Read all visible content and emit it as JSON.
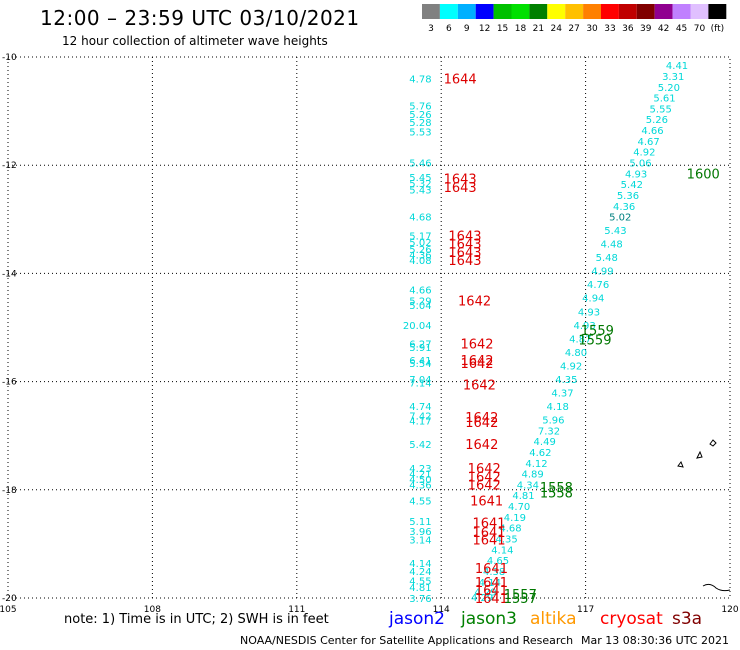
{
  "header": {
    "title": "12:00 – 23:59 UTC 03/10/2021",
    "subtitle": "12 hour collection of altimeter wave heights"
  },
  "colorbar": {
    "colors": [
      "#808080",
      "#00ffff",
      "#00b0ff",
      "#0000ff",
      "#00c000",
      "#00e000",
      "#008000",
      "#ffff00",
      "#ffc000",
      "#ff8000",
      "#ff0000",
      "#c00000",
      "#800000",
      "#900090",
      "#c080ff",
      "#e0c0ff",
      "#000000"
    ],
    "labels": [
      "3",
      "6",
      "9",
      "12",
      "15",
      "18",
      "21",
      "24",
      "27",
      "30",
      "33",
      "36",
      "39",
      "42",
      "45",
      "70",
      "(ft)"
    ]
  },
  "axes": {
    "x_ticks": [
      "105",
      "108",
      "111",
      "114",
      "117",
      "120"
    ],
    "y_ticks": [
      "-10",
      "-12",
      "-14",
      "-16",
      "-18",
      "-20"
    ]
  },
  "labels_left": [
    {
      "t": "4.78",
      "lat": -10.4
    },
    {
      "t": "5.76",
      "lat": -10.9
    },
    {
      "t": "5.26",
      "lat": -11.05
    },
    {
      "t": "5.28",
      "lat": -11.2
    },
    {
      "t": "5.53",
      "lat": -11.38
    },
    {
      "t": "5.46",
      "lat": -11.95
    },
    {
      "t": "5.45",
      "lat": -12.22
    },
    {
      "t": "5.32",
      "lat": -12.33
    },
    {
      "t": "5.43",
      "lat": -12.45
    },
    {
      "t": "4.68",
      "lat": -12.95
    },
    {
      "t": "5.17",
      "lat": -13.3
    },
    {
      "t": "5.02",
      "lat": -13.42
    },
    {
      "t": "5.26",
      "lat": -13.55
    },
    {
      "t": "4.36",
      "lat": -13.65
    },
    {
      "t": "4.08",
      "lat": -13.75
    },
    {
      "t": "4.66",
      "lat": -14.3
    },
    {
      "t": "5.29",
      "lat": -14.5
    },
    {
      "t": "5.04",
      "lat": -14.58
    },
    {
      "t": "20.04",
      "lat": -14.95
    },
    {
      "t": "6.27",
      "lat": -15.3
    },
    {
      "t": "5.91",
      "lat": -15.36
    },
    {
      "t": "6.41",
      "lat": -15.6
    },
    {
      "t": "5.54",
      "lat": -15.66
    },
    {
      "t": "7.04",
      "lat": -15.95
    },
    {
      "t": "7.14",
      "lat": -16.02
    },
    {
      "t": "4.74",
      "lat": -16.45
    },
    {
      "t": "7.42",
      "lat": -16.63
    },
    {
      "t": "4.17",
      "lat": -16.72
    },
    {
      "t": "5.42",
      "lat": -17.15
    },
    {
      "t": "4.23",
      "lat": -17.6
    },
    {
      "t": "4.21",
      "lat": -17.7
    },
    {
      "t": "4.50",
      "lat": -17.8
    },
    {
      "t": "4.36",
      "lat": -17.9
    },
    {
      "t": "4.55",
      "lat": -18.2
    },
    {
      "t": "5.11",
      "lat": -18.58
    },
    {
      "t": "3.96",
      "lat": -18.76
    },
    {
      "t": "3.14",
      "lat": -18.92
    },
    {
      "t": "4.14",
      "lat": -19.35
    },
    {
      "t": "4.24",
      "lat": -19.5
    },
    {
      "t": "4.55",
      "lat": -19.68
    },
    {
      "t": "4.81",
      "lat": -19.8
    },
    {
      "t": "3.76",
      "lat": -20.0
    }
  ],
  "labels_right": [
    {
      "t": "4.41",
      "lon": 118.9,
      "lat": -10.15
    },
    {
      "t": "3.31",
      "lon": 118.82,
      "lat": -10.35
    },
    {
      "t": "5.20",
      "lon": 118.73,
      "lat": -10.55
    },
    {
      "t": "5.61",
      "lon": 118.64,
      "lat": -10.75
    },
    {
      "t": "5.55",
      "lon": 118.56,
      "lat": -10.95
    },
    {
      "t": "5.26",
      "lon": 118.48,
      "lat": -11.15
    },
    {
      "t": "4.66",
      "lon": 118.39,
      "lat": -11.35
    },
    {
      "t": "4.67",
      "lon": 118.31,
      "lat": -11.55
    },
    {
      "t": "4.92",
      "lon": 118.22,
      "lat": -11.75
    },
    {
      "t": "5.06",
      "lon": 118.14,
      "lat": -11.95
    },
    {
      "t": "4.93",
      "lon": 118.05,
      "lat": -12.15
    },
    {
      "t": "5.42",
      "lon": 117.96,
      "lat": -12.35
    },
    {
      "t": "5.36",
      "lon": 117.88,
      "lat": -12.55
    },
    {
      "t": "4.36",
      "lon": 117.8,
      "lat": -12.75
    },
    {
      "t": "5.02",
      "lon": 117.72,
      "lat": -12.95
    },
    {
      "t": "5.43",
      "lon": 117.62,
      "lat": -13.2
    },
    {
      "t": "4.48",
      "lon": 117.54,
      "lat": -13.45
    },
    {
      "t": "5.48",
      "lon": 117.44,
      "lat": -13.7
    },
    {
      "t": "4.99",
      "lon": 117.35,
      "lat": -13.95
    },
    {
      "t": "4.76",
      "lon": 117.26,
      "lat": -14.2
    },
    {
      "t": "4.94",
      "lon": 117.16,
      "lat": -14.45
    },
    {
      "t": "4.93",
      "lon": 117.07,
      "lat": -14.7
    },
    {
      "t": "4.93",
      "lon": 116.98,
      "lat": -14.95
    },
    {
      "t": "4.87",
      "lon": 116.89,
      "lat": -15.2
    },
    {
      "t": "4.80",
      "lon": 116.8,
      "lat": -15.45
    },
    {
      "t": "4.92",
      "lon": 116.7,
      "lat": -15.7
    },
    {
      "t": "4.35",
      "lon": 116.6,
      "lat": -15.95
    },
    {
      "t": "4.37",
      "lon": 116.52,
      "lat": -16.2
    },
    {
      "t": "4.18",
      "lon": 116.42,
      "lat": -16.45
    },
    {
      "t": "5.96",
      "lon": 116.33,
      "lat": -16.7
    },
    {
      "t": "7.32",
      "lon": 116.24,
      "lat": -16.9
    },
    {
      "t": "4.49",
      "lon": 116.15,
      "lat": -17.1
    },
    {
      "t": "4.62",
      "lon": 116.06,
      "lat": -17.3
    },
    {
      "t": "4.12",
      "lon": 115.98,
      "lat": -17.5
    },
    {
      "t": "4.89",
      "lon": 115.9,
      "lat": -17.7
    },
    {
      "t": "4.34",
      "lon": 115.8,
      "lat": -17.9
    },
    {
      "t": "4.81",
      "lon": 115.71,
      "lat": -18.1
    },
    {
      "t": "4.70",
      "lon": 115.62,
      "lat": -18.3
    },
    {
      "t": "4.19",
      "lon": 115.53,
      "lat": -18.5
    },
    {
      "t": "4.68",
      "lon": 115.44,
      "lat": -18.7
    },
    {
      "t": "4.35",
      "lon": 115.36,
      "lat": -18.9
    },
    {
      "t": "4.14",
      "lon": 115.27,
      "lat": -19.1
    },
    {
      "t": "4.65",
      "lon": 115.18,
      "lat": -19.3
    },
    {
      "t": "4.38",
      "lon": 115.1,
      "lat": -19.5
    },
    {
      "t": "4.14",
      "lon": 115.01,
      "lat": -19.7
    },
    {
      "t": "4.29",
      "lon": 114.92,
      "lat": -19.88
    },
    {
      "t": "4.29",
      "lon": 114.85,
      "lat": -19.98
    }
  ],
  "times": [
    {
      "t": "1644",
      "lon": 114.05,
      "lat": -10.4,
      "sat": "cryosat"
    },
    {
      "t": "1643",
      "lon": 114.05,
      "lat": -12.25,
      "sat": "cryosat"
    },
    {
      "t": "1643",
      "lon": 114.05,
      "lat": -12.4,
      "sat": "cryosat"
    },
    {
      "t": "1643",
      "lon": 114.15,
      "lat": -13.3,
      "sat": "cryosat"
    },
    {
      "t": "1643",
      "lon": 114.15,
      "lat": -13.45,
      "sat": "cryosat"
    },
    {
      "t": "1643",
      "lon": 114.15,
      "lat": -13.6,
      "sat": "cryosat"
    },
    {
      "t": "1643",
      "lon": 114.15,
      "lat": -13.75,
      "sat": "cryosat"
    },
    {
      "t": "1642",
      "lon": 114.35,
      "lat": -14.5,
      "sat": "cryosat"
    },
    {
      "t": "1642",
      "lon": 114.4,
      "lat": -15.3,
      "sat": "cryosat"
    },
    {
      "t": "1642",
      "lon": 114.4,
      "lat": -15.6,
      "sat": "cryosat"
    },
    {
      "t": "1642",
      "lon": 114.4,
      "lat": -15.66,
      "sat": "cryosat"
    },
    {
      "t": "1642",
      "lon": 114.45,
      "lat": -16.05,
      "sat": "cryosat"
    },
    {
      "t": "1642",
      "lon": 114.5,
      "lat": -16.65,
      "sat": "cryosat"
    },
    {
      "t": "1642",
      "lon": 114.5,
      "lat": -16.75,
      "sat": "cryosat"
    },
    {
      "t": "1642",
      "lon": 114.5,
      "lat": -17.15,
      "sat": "cryosat"
    },
    {
      "t": "1642",
      "lon": 114.55,
      "lat": -17.6,
      "sat": "cryosat"
    },
    {
      "t": "1642",
      "lon": 114.55,
      "lat": -17.75,
      "sat": "cryosat"
    },
    {
      "t": "1642",
      "lon": 114.55,
      "lat": -17.9,
      "sat": "cryosat"
    },
    {
      "t": "1641",
      "lon": 114.6,
      "lat": -18.2,
      "sat": "cryosat"
    },
    {
      "t": "1641",
      "lon": 114.65,
      "lat": -18.6,
      "sat": "cryosat"
    },
    {
      "t": "1641",
      "lon": 114.65,
      "lat": -18.78,
      "sat": "cryosat"
    },
    {
      "t": "1641",
      "lon": 114.65,
      "lat": -18.92,
      "sat": "cryosat"
    },
    {
      "t": "1641",
      "lon": 114.7,
      "lat": -19.45,
      "sat": "cryosat"
    },
    {
      "t": "1641",
      "lon": 114.7,
      "lat": -19.7,
      "sat": "cryosat"
    },
    {
      "t": "1641",
      "lon": 114.7,
      "lat": -19.85,
      "sat": "cryosat"
    },
    {
      "t": "1641",
      "lon": 114.7,
      "lat": -20.0,
      "sat": "cryosat"
    },
    {
      "t": "1600",
      "lon": 119.1,
      "lat": -12.15,
      "sat": "jason3"
    },
    {
      "t": "1559",
      "lon": 116.9,
      "lat": -15.05,
      "sat": "jason3"
    },
    {
      "t": "1559",
      "lon": 116.85,
      "lat": -15.22,
      "sat": "jason3"
    },
    {
      "t": "1558",
      "lon": 116.05,
      "lat": -17.95,
      "sat": "jason3"
    },
    {
      "t": "1558",
      "lon": 116.05,
      "lat": -18.05,
      "sat": "jason3"
    },
    {
      "t": "1557",
      "lon": 115.3,
      "lat": -19.93,
      "sat": "jason3"
    },
    {
      "t": "1557",
      "lon": 115.3,
      "lat": -20.0,
      "sat": "jason3"
    }
  ],
  "footer": {
    "note": "note:  1) Time is in UTC;  2) SWH is in feet",
    "missions": [
      {
        "name": "jason2",
        "color": "#0000ff"
      },
      {
        "name": "jason3",
        "color": "#008000"
      },
      {
        "name": "altika",
        "color": "#ff9900"
      },
      {
        "name": "cryosat",
        "color": "#ff0000"
      },
      {
        "name": "s3a",
        "color": "#800000"
      }
    ],
    "credit": "NOAA/NESDIS Center for Satellite Applications and Research",
    "timestamp": "Mar 13 08:30:36 UTC 2021"
  },
  "colors": {
    "swh_text": "#00d8d8",
    "swh_alt": "#008080",
    "time_cryosat": "#dd0000",
    "time_jason3": "#007700"
  }
}
